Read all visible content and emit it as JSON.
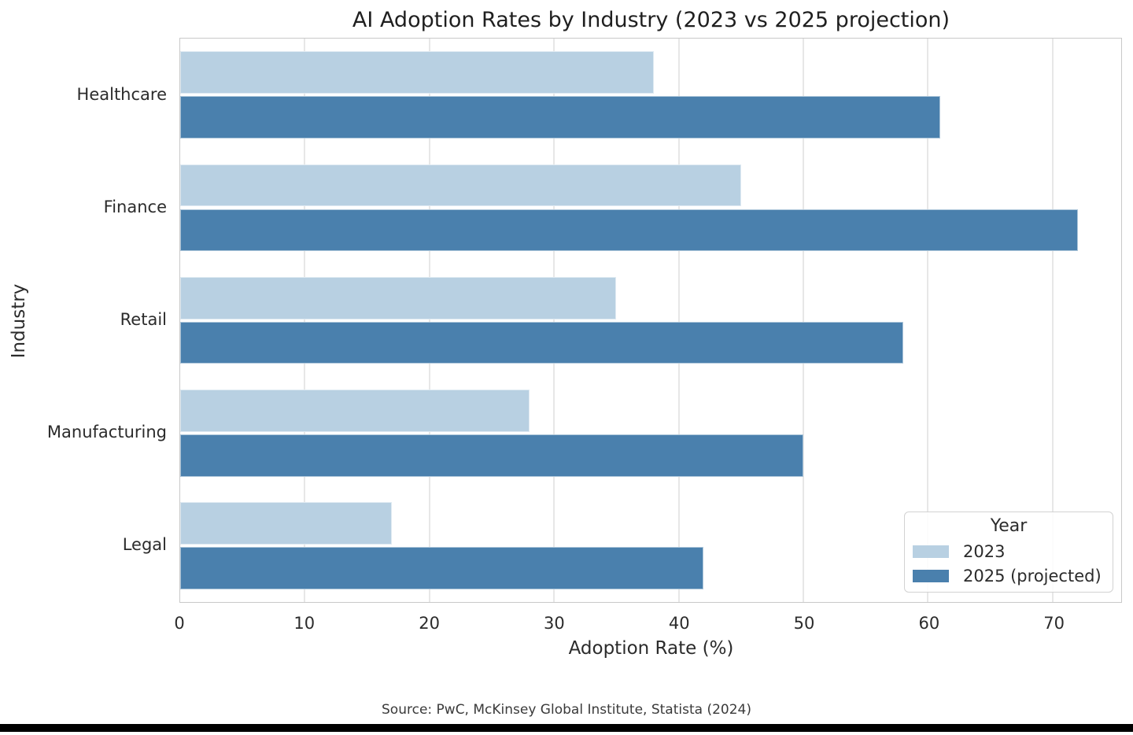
{
  "chart_data": {
    "type": "bar",
    "orientation": "horizontal",
    "title": "AI Adoption Rates by Industry (2023 vs 2025 projection)",
    "xlabel": "Adoption Rate (%)",
    "ylabel": "Industry",
    "categories": [
      "Healthcare",
      "Finance",
      "Retail",
      "Manufacturing",
      "Legal"
    ],
    "series": [
      {
        "name": "2023",
        "color": "#b8d0e2",
        "values": [
          38,
          45,
          35,
          28,
          17
        ]
      },
      {
        "name": "2025 (projected)",
        "color": "#4a80ad",
        "values": [
          61,
          72,
          58,
          50,
          42
        ]
      }
    ],
    "xlim": [
      0,
      75.5
    ],
    "xticks": [
      0,
      10,
      20,
      30,
      40,
      50,
      60,
      70
    ],
    "grid": "vertical",
    "grid_color": "#e7e7e7",
    "legend": {
      "title": "Year",
      "position": "lower right"
    }
  },
  "footer": {
    "source": "Source: PwC, McKinsey Global Institute, Statista (2024)"
  }
}
